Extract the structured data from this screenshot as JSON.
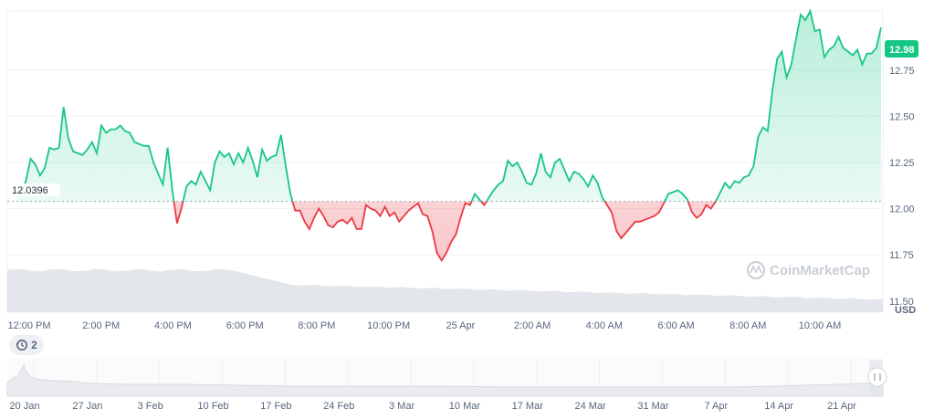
{
  "chart_data": {
    "type": "line",
    "currency": "USD",
    "current_price_label": "12.98",
    "baseline_label": "12.0396",
    "baseline": 12.0396,
    "ylim": [
      11.44,
      13.07
    ],
    "y_ticks": [
      "12.75",
      "12.50",
      "12.25",
      "12.00",
      "11.75",
      "11.50"
    ],
    "x_ticks": [
      "12:00 PM",
      "2:00 PM",
      "4:00 PM",
      "6:00 PM",
      "8:00 PM",
      "10:00 PM",
      "25 Apr",
      "2:00 AM",
      "4:00 AM",
      "6:00 AM",
      "8:00 AM",
      "10:00 AM"
    ],
    "colors": {
      "up": "#16c784",
      "down": "#ea3943",
      "badge": "#16c784"
    },
    "series": [
      {
        "values": [
          12.1,
          12.09,
          12.15,
          12.27,
          12.24,
          12.18,
          12.22,
          12.33,
          12.32,
          12.33,
          12.55,
          12.38,
          12.31,
          12.3,
          12.29,
          12.32,
          12.36,
          12.3,
          12.45,
          12.41,
          12.43,
          12.43,
          12.45,
          12.42,
          12.41,
          12.36,
          12.35,
          12.34,
          12.34,
          12.25,
          12.19,
          12.13,
          12.33,
          12.1,
          11.92,
          12.01,
          12.12,
          12.15,
          12.13,
          12.2,
          12.15,
          12.1,
          12.25,
          12.31,
          12.28,
          12.3,
          12.24,
          12.3,
          12.25,
          12.33,
          12.26,
          12.17,
          12.32,
          12.26,
          12.28,
          12.29,
          12.4,
          12.23,
          12.08,
          11.99,
          11.99,
          11.93,
          11.89,
          11.95,
          12.0,
          11.96,
          11.91,
          11.9,
          11.93,
          11.94,
          11.92,
          11.95,
          11.89,
          11.89,
          12.02,
          12.0,
          11.99,
          11.96,
          12.01,
          11.96,
          11.98,
          11.93,
          11.96,
          11.99,
          12.01,
          12.03,
          11.97,
          11.96,
          11.88,
          11.76,
          11.72,
          11.76,
          11.82,
          11.86,
          11.95,
          12.03,
          12.02,
          12.08,
          12.05,
          12.02,
          12.06,
          12.1,
          12.13,
          12.15,
          12.26,
          12.23,
          12.25,
          12.2,
          12.14,
          12.13,
          12.19,
          12.3,
          12.2,
          12.17,
          12.25,
          12.27,
          12.21,
          12.15,
          12.2,
          12.19,
          12.16,
          12.12,
          12.18,
          12.14,
          12.06,
          12.02,
          11.98,
          11.88,
          11.84,
          11.87,
          11.9,
          11.93,
          11.93,
          11.94,
          11.95,
          11.96,
          11.98,
          12.03,
          12.08,
          12.09,
          12.1,
          12.08,
          12.05,
          11.98,
          11.95,
          11.97,
          12.02,
          12.0,
          12.04,
          12.09,
          12.14,
          12.11,
          12.15,
          12.14,
          12.17,
          12.18,
          12.23,
          12.39,
          12.44,
          12.42,
          12.64,
          12.81,
          12.85,
          12.71,
          12.78,
          12.92,
          13.05,
          13.02,
          13.07,
          12.96,
          12.97,
          12.82,
          12.86,
          12.88,
          12.93,
          12.87,
          12.85,
          12.83,
          12.86,
          12.78,
          12.84,
          12.84,
          12.87,
          12.98
        ]
      }
    ]
  },
  "navigator": {
    "history_count": "2",
    "x_ticks": [
      "20 Jan",
      "27 Jan",
      "3 Feb",
      "10 Feb",
      "17 Feb",
      "24 Feb",
      "3 Mar",
      "10 Mar",
      "17 Mar",
      "24 Mar",
      "31 Mar",
      "7 Apr",
      "14 Apr",
      "21 Apr"
    ]
  },
  "watermark": "CoinMarketCap"
}
